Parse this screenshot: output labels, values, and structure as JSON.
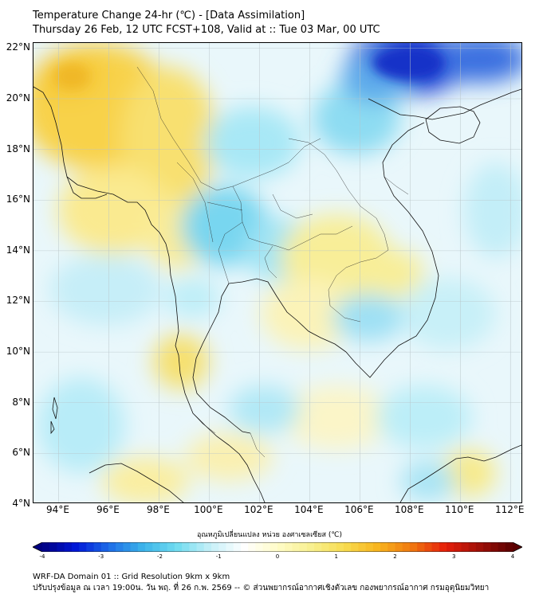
{
  "title": {
    "line1": "Temperature Change 24-hr (℃) - [Data Assimilation]",
    "line2": "Thursday 26 Feb, 12 UTC FCST+108, Valid at :: Tue 03 Mar, 00 UTC"
  },
  "map": {
    "lon_range": [
      93.0,
      112.5
    ],
    "lat_range": [
      4.0,
      22.2
    ],
    "lat_ticks": [
      "22°N",
      "20°N",
      "18°N",
      "16°N",
      "14°N",
      "12°N",
      "10°N",
      "8°N",
      "6°N",
      "4°N"
    ],
    "lon_ticks": [
      "94°E",
      "96°E",
      "98°E",
      "100°E",
      "102°E",
      "104°E",
      "106°E",
      "108°E",
      "110°E",
      "112°E"
    ],
    "gridlines": true
  },
  "colorbar": {
    "label": "อุณหภูมิเปลี่ยนแปลง หน่วย องศาเซลเซียส (℃)",
    "ticks": [
      "-4",
      "-3",
      "-2",
      "-1",
      "0",
      "1",
      "2",
      "3",
      "4"
    ],
    "range": [
      -4,
      4
    ],
    "colors": [
      "#000080",
      "#0018d8",
      "#1e6ee8",
      "#3cb4ea",
      "#70dcf0",
      "#c6f0f8",
      "#ffffff",
      "#fffcc8",
      "#f8f090",
      "#f8dc50",
      "#f8b41e",
      "#f07810",
      "#e61e0a",
      "#a01008",
      "#5a0000"
    ]
  },
  "footer": {
    "line1": "WRF-DA Domain 01 :: Grid Resolution 9km x 9km",
    "line2": "ปรับปรุงข้อมูล ณ เวลา 19:00น. วัน พฤ. ที่ 26 ก.พ. 2569 -- © ส่วนพยากรณ์อากาศเชิงตัวเลข กองพยากรณ์อากาศ กรมอุตุนิยมวิทยา"
  }
}
